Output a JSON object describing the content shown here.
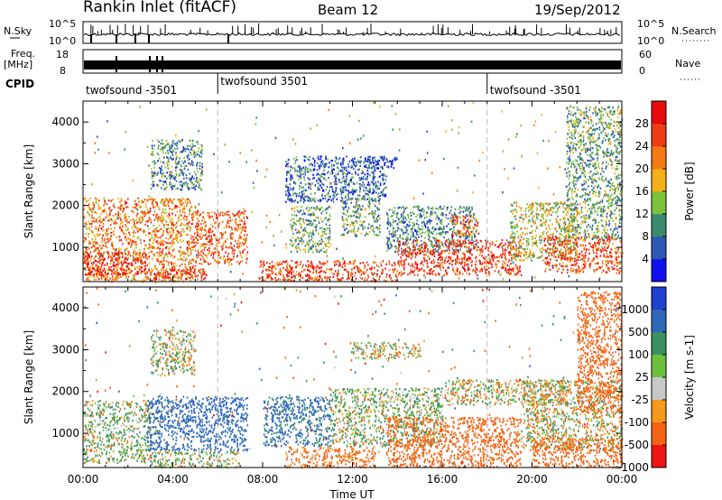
{
  "header": {
    "site": "Rankin Inlet (fitACF)",
    "beam": "Beam 12",
    "date": "19/Sep/2012"
  },
  "strip": {
    "nsky_label": "N.Sky",
    "nsky_ticks": [
      "10^5",
      "10^0"
    ],
    "nsearch_label": "N.Search",
    "nsearch_ticks": [
      "10^5",
      "10^0"
    ],
    "freq_label": "Freq.",
    "freq_unit": "[MHz]",
    "freq_ticks": [
      "18",
      "8"
    ],
    "nave_label": "Nave",
    "nave_ticks": [
      "60",
      "0"
    ],
    "cpid_label": "CPID",
    "cpid_segments": [
      {
        "label": "twofsound -3501",
        "start_hour": 0,
        "end_hour": 6
      },
      {
        "label": "twofsound 3501",
        "start_hour": 6,
        "end_hour": 18
      },
      {
        "label": "twofsound -3501",
        "start_hour": 18,
        "end_hour": 24
      }
    ]
  },
  "chart_data": [
    {
      "type": "heatmap",
      "name": "power",
      "ylabel": "Slant Range [km]",
      "ylim": [
        180,
        4500
      ],
      "yticks": [
        "1000",
        "2000",
        "3000",
        "4000"
      ],
      "xlim_hours": [
        0,
        24
      ],
      "colorbar_label": "Power [dB]",
      "colorbar_ticks": [
        "4",
        "8",
        "12",
        "16",
        "20",
        "24",
        "28"
      ],
      "colorbar_colors": [
        "#1010ee",
        "#2e58b4",
        "#3a8a70",
        "#7cc23c",
        "#f4b018",
        "#f47a14",
        "#f03c14",
        "#e80c0c"
      ],
      "regions": [
        {
          "t": [
            0.0,
            5.0
          ],
          "r": [
            200,
            2200
          ],
          "v": 22
        },
        {
          "t": [
            5.0,
            7.3
          ],
          "r": [
            600,
            1900
          ],
          "v": 24
        },
        {
          "t": [
            0.0,
            2.8
          ],
          "r": [
            350,
            900
          ],
          "v": 30
        },
        {
          "t": [
            2.8,
            5.5
          ],
          "r": [
            250,
            500
          ],
          "v": 28
        },
        {
          "t": [
            7.8,
            14.0
          ],
          "r": [
            200,
            700
          ],
          "v": 26
        },
        {
          "t": [
            9.2,
            11.0
          ],
          "r": [
            900,
            2000
          ],
          "v": 12
        },
        {
          "t": [
            11.5,
            13.2
          ],
          "r": [
            1300,
            2200
          ],
          "v": 12
        },
        {
          "t": [
            13.5,
            17.5
          ],
          "r": [
            900,
            2000
          ],
          "v": 9
        },
        {
          "t": [
            14.0,
            19.5
          ],
          "r": [
            350,
            1200
          ],
          "v": 28
        },
        {
          "t": [
            16.3,
            17.6
          ],
          "r": [
            1300,
            1800
          ],
          "v": 24
        },
        {
          "t": [
            19.0,
            22.0
          ],
          "r": [
            700,
            2100
          ],
          "v": 16
        },
        {
          "t": [
            20.5,
            24.0
          ],
          "r": [
            400,
            1300
          ],
          "v": 26
        },
        {
          "t": [
            21.5,
            24.0
          ],
          "r": [
            1200,
            4400
          ],
          "v": 12
        },
        {
          "t": [
            3.0,
            5.3
          ],
          "r": [
            2400,
            3600
          ],
          "v": 10
        },
        {
          "t": [
            9.0,
            13.5
          ],
          "r": [
            2100,
            3200
          ],
          "v": 7
        },
        {
          "t": [
            12.5,
            14.0
          ],
          "r": [
            2900,
            3200
          ],
          "v": 4
        }
      ]
    },
    {
      "type": "heatmap",
      "name": "velocity",
      "ylabel": "Slant Range [km]",
      "ylim": [
        180,
        4500
      ],
      "yticks": [
        "1000",
        "2000",
        "3000",
        "4000"
      ],
      "xlabel": "Time UT",
      "xticks": [
        "00:00",
        "04:00",
        "08:00",
        "12:00",
        "16:00",
        "20:00",
        "00:00"
      ],
      "xlim_hours": [
        0,
        24
      ],
      "colorbar_label": "Velocity [m s-1]",
      "colorbar_ticks": [
        "1000",
        "500",
        "100",
        "25",
        "-25",
        "-100",
        "-500",
        "-1000"
      ],
      "colorbar_colors": [
        "#2040d0",
        "#2e68b8",
        "#3a9060",
        "#6cc03c",
        "#c8c8c8",
        "#f49a1c",
        "#f46414",
        "#ee1414"
      ],
      "regions": [
        {
          "t": [
            0.0,
            3.0
          ],
          "r": [
            300,
            1800
          ],
          "v": 80
        },
        {
          "t": [
            2.8,
            7.3
          ],
          "r": [
            600,
            1900
          ],
          "v": 700
        },
        {
          "t": [
            3.0,
            7.0
          ],
          "r": [
            200,
            600
          ],
          "v": 60
        },
        {
          "t": [
            8.0,
            11.0
          ],
          "r": [
            700,
            1900
          ],
          "v": 600
        },
        {
          "t": [
            9.0,
            13.0
          ],
          "r": [
            200,
            700
          ],
          "v": -200
        },
        {
          "t": [
            11.0,
            16.0
          ],
          "r": [
            700,
            2100
          ],
          "v": 80
        },
        {
          "t": [
            13.5,
            19.5
          ],
          "r": [
            200,
            1400
          ],
          "v": -300
        },
        {
          "t": [
            16.0,
            21.5
          ],
          "r": [
            1700,
            2300
          ],
          "v": 0
        },
        {
          "t": [
            12.0,
            15.0
          ],
          "r": [
            2800,
            3200
          ],
          "v": 0
        },
        {
          "t": [
            19.5,
            24.0
          ],
          "r": [
            600,
            2300
          ],
          "v": 0
        },
        {
          "t": [
            20.0,
            24.0
          ],
          "r": [
            200,
            900
          ],
          "v": -300
        },
        {
          "t": [
            22.0,
            24.0
          ],
          "r": [
            1500,
            4400
          ],
          "v": -300
        },
        {
          "t": [
            3.0,
            5.0
          ],
          "r": [
            2400,
            3500
          ],
          "v": 60
        }
      ]
    }
  ]
}
